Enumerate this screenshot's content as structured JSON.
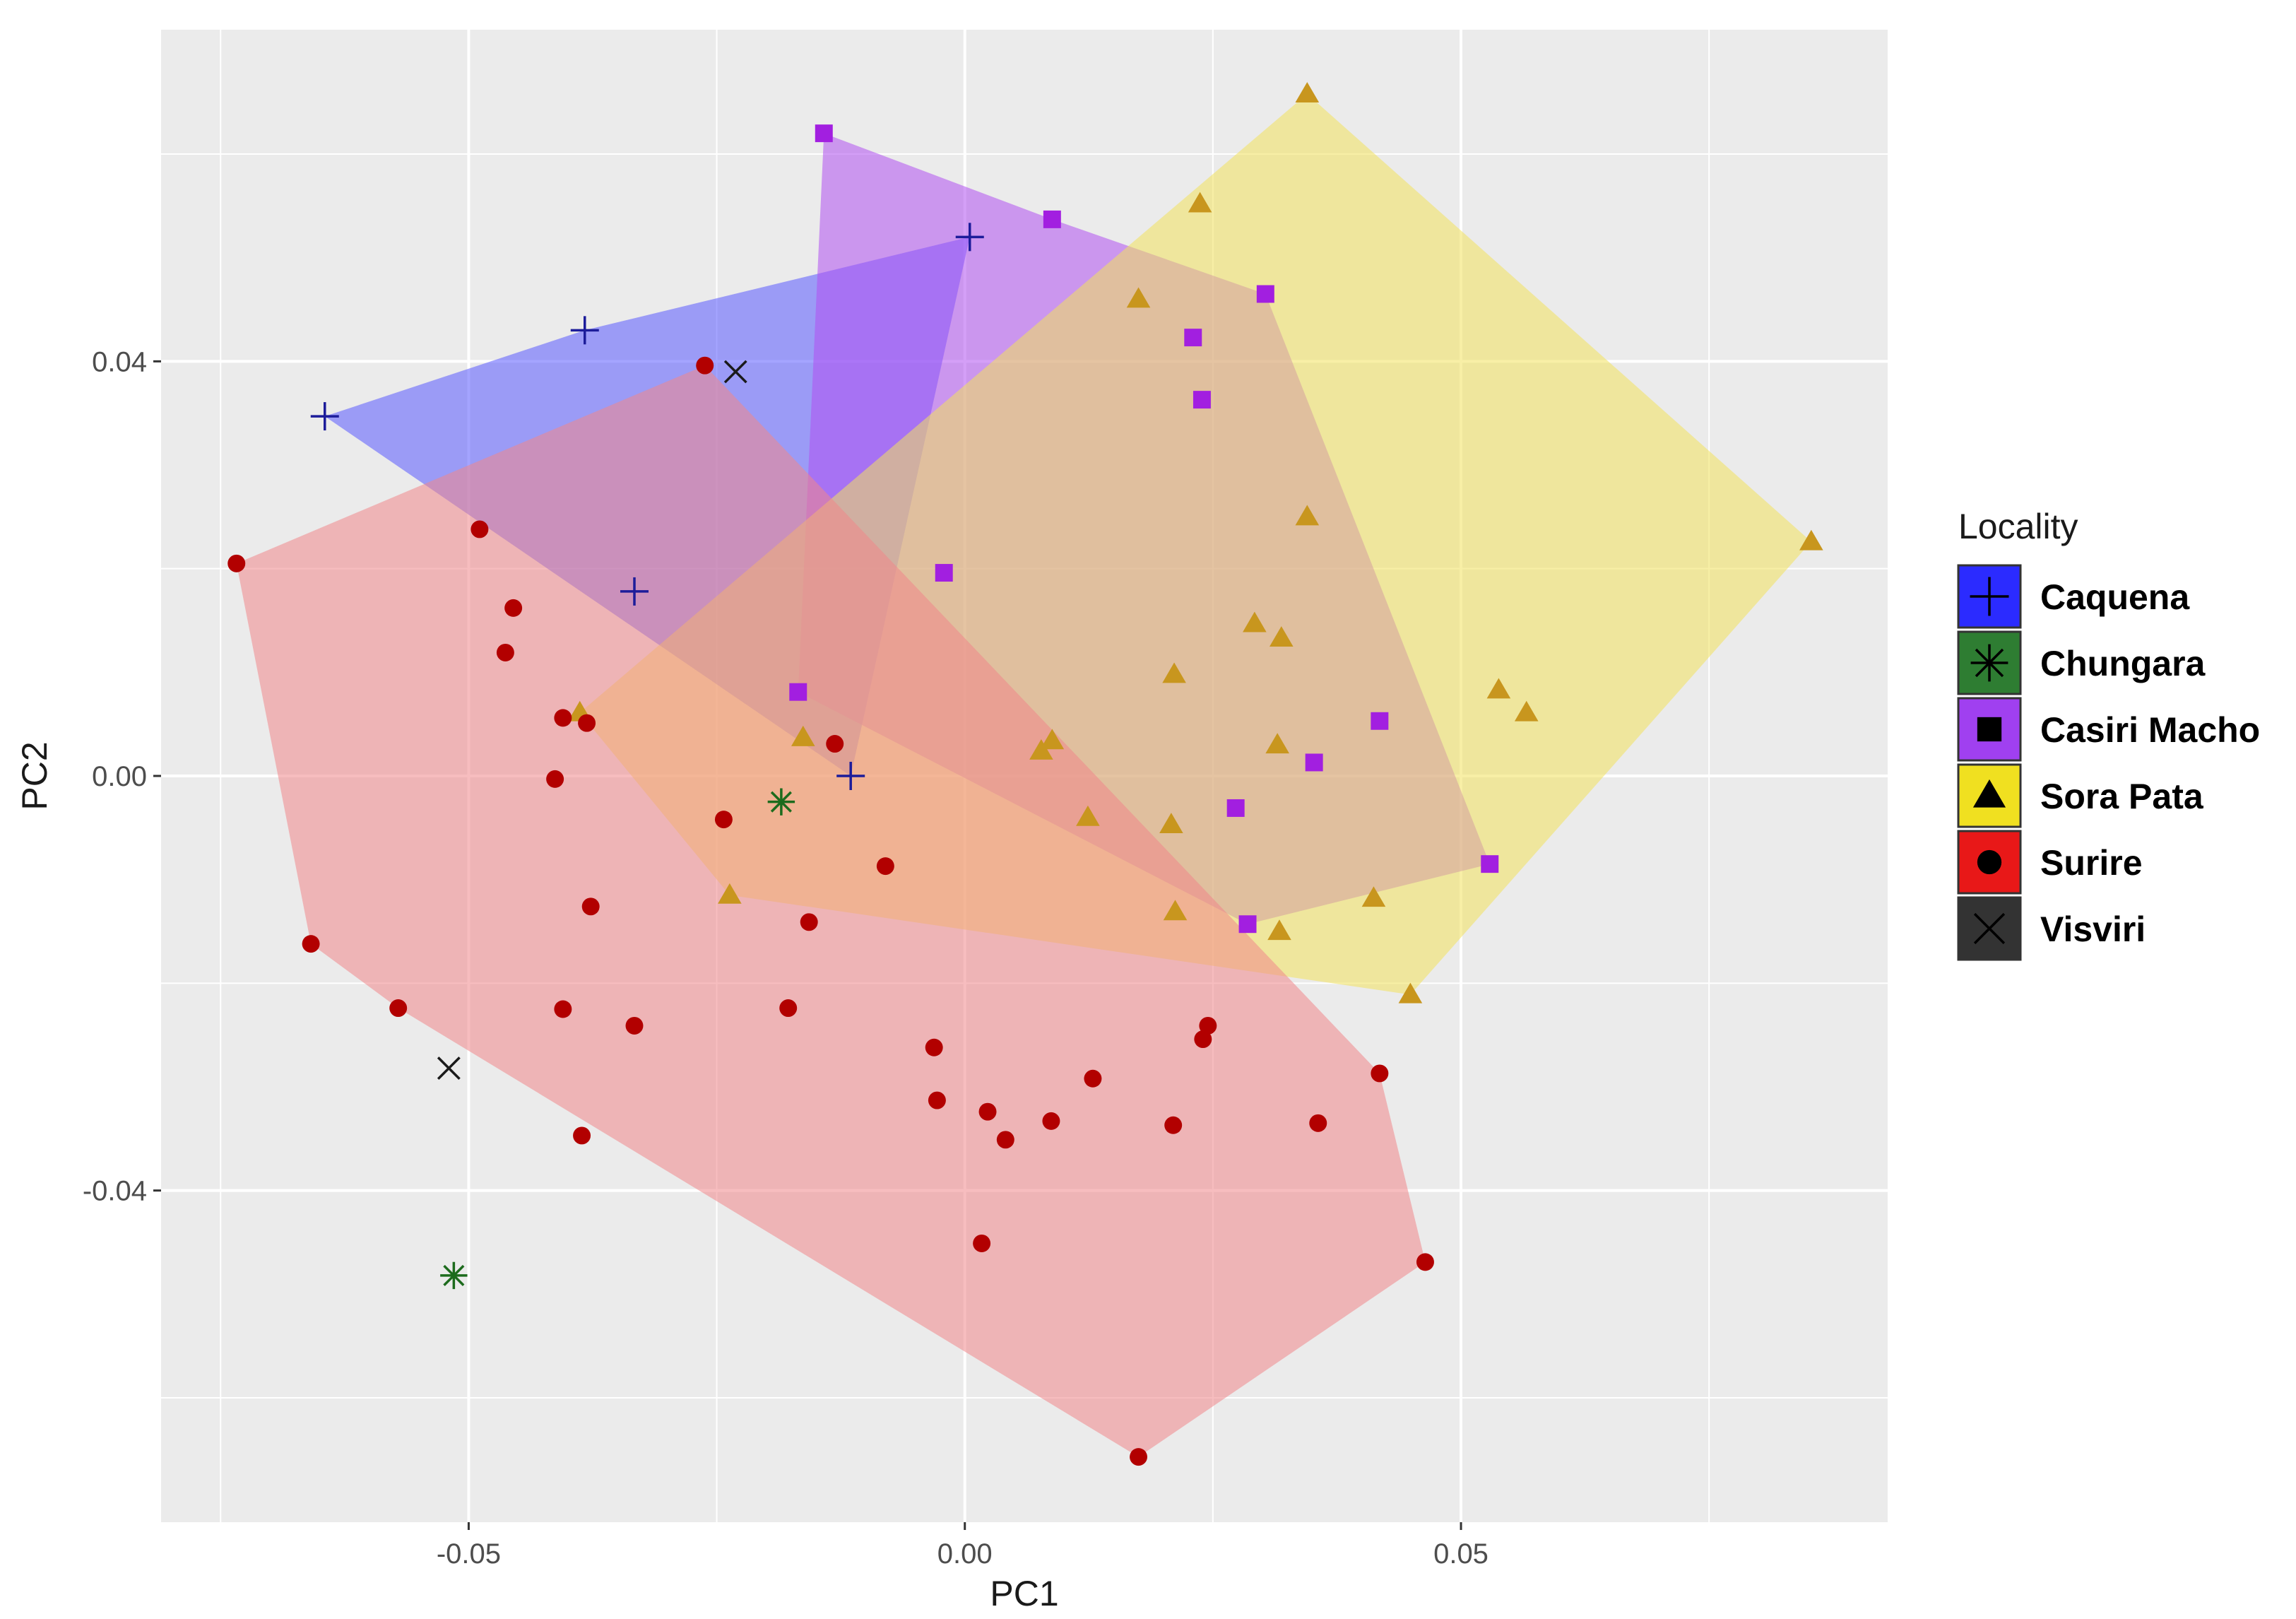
{
  "chart_data": {
    "type": "scatter",
    "title": "",
    "xlabel": "PC1",
    "ylabel": "PC2",
    "xlim": [
      -0.081,
      0.093
    ],
    "ylim": [
      -0.072,
      0.072
    ],
    "x_ticks": [
      -0.05,
      0.0,
      0.05
    ],
    "x_tick_labels": [
      "-0.05",
      "0.00",
      "0.05"
    ],
    "y_ticks": [
      -0.04,
      0.0,
      0.04
    ],
    "y_tick_labels": [
      "-0.04",
      "0.00",
      "0.04"
    ],
    "grid": true,
    "legend_title": "Locality",
    "legend_position": "right",
    "hulls_drawn_for": [
      "Caquena",
      "Casiri Macho",
      "Sora Pata",
      "Surire"
    ],
    "series": [
      {
        "name": "Caquena",
        "marker": "plus",
        "color": "#2b2bff",
        "point_color": "#1c1c9a",
        "hull_color": "#5a5aff",
        "points": [
          [
            -0.0645,
            0.0347
          ],
          [
            -0.0383,
            0.043
          ],
          [
            -0.0333,
            0.0178
          ],
          [
            0.0005,
            0.052
          ],
          [
            -0.0115,
            0.0
          ]
        ],
        "hull": [
          [
            -0.0645,
            0.0347
          ],
          [
            -0.0383,
            0.043
          ],
          [
            0.0005,
            0.052
          ],
          [
            -0.0115,
            0.0
          ]
        ]
      },
      {
        "name": "Chungara",
        "marker": "asterisk",
        "color": "#2e7d32",
        "point_color": "#1d6b1d",
        "points": [
          [
            -0.0185,
            -0.0025
          ],
          [
            -0.0515,
            -0.0482
          ]
        ]
      },
      {
        "name": "Casiri Macho",
        "marker": "square",
        "color": "#a040f0",
        "point_color": "#a21fe0",
        "hull_color": "#b050f0",
        "points": [
          [
            -0.0142,
            0.062
          ],
          [
            0.0088,
            0.0537
          ],
          [
            0.0303,
            0.0465
          ],
          [
            0.023,
            0.0423
          ],
          [
            0.0239,
            0.0363
          ],
          [
            -0.0021,
            0.0196
          ],
          [
            -0.0168,
            0.0081
          ],
          [
            0.0418,
            0.0053
          ],
          [
            0.0352,
            0.0013
          ],
          [
            0.0273,
            -0.0031
          ],
          [
            0.0529,
            -0.0085
          ],
          [
            0.0285,
            -0.0143
          ]
        ],
        "hull": [
          [
            -0.0142,
            0.062
          ],
          [
            0.0088,
            0.0537
          ],
          [
            0.0303,
            0.0465
          ],
          [
            0.0529,
            -0.0085
          ],
          [
            0.0285,
            -0.0143
          ],
          [
            -0.0168,
            0.0081
          ]
        ]
      },
      {
        "name": "Sora Pata",
        "marker": "triangle",
        "color": "#f0e020",
        "point_color": "#c8961e",
        "hull_color": "#f2e25c",
        "points": [
          [
            0.0345,
            0.0658
          ],
          [
            0.0237,
            0.0552
          ],
          [
            0.0175,
            0.046
          ],
          [
            0.0853,
            0.0226
          ],
          [
            0.0345,
            0.025
          ],
          [
            0.0292,
            0.0147
          ],
          [
            0.0319,
            0.0133
          ],
          [
            0.0211,
            0.0098
          ],
          [
            0.0538,
            0.0083
          ],
          [
            0.0566,
            0.0061
          ],
          [
            -0.0388,
            0.0061
          ],
          [
            -0.0163,
            0.0037
          ],
          [
            0.0088,
            0.0034
          ],
          [
            0.0077,
            0.0024
          ],
          [
            0.0315,
            0.003
          ],
          [
            0.0124,
            -0.004
          ],
          [
            0.0208,
            -0.0047
          ],
          [
            -0.0237,
            -0.0115
          ],
          [
            0.0412,
            -0.0118
          ],
          [
            0.0212,
            -0.0131
          ],
          [
            0.0317,
            -0.015
          ],
          [
            0.0449,
            -0.0211
          ]
        ],
        "hull": [
          [
            0.0345,
            0.0658
          ],
          [
            0.0853,
            0.0226
          ],
          [
            0.0449,
            -0.0211
          ],
          [
            -0.0237,
            -0.0115
          ],
          [
            -0.0388,
            0.0061
          ]
        ]
      },
      {
        "name": "Surire",
        "marker": "circle",
        "color": "#e81818",
        "point_color": "#b20000",
        "hull_color": "#f0868a",
        "points": [
          [
            -0.0262,
            0.0396
          ],
          [
            -0.0489,
            0.0238
          ],
          [
            -0.0734,
            0.0205
          ],
          [
            -0.0455,
            0.0162
          ],
          [
            -0.0463,
            0.0119
          ],
          [
            -0.0405,
            0.0056
          ],
          [
            -0.0381,
            0.0051
          ],
          [
            -0.0131,
            0.0031
          ],
          [
            -0.0413,
            -0.0003
          ],
          [
            -0.0243,
            -0.0042
          ],
          [
            -0.008,
            -0.0087
          ],
          [
            -0.0377,
            -0.0126
          ],
          [
            -0.0157,
            -0.0141
          ],
          [
            -0.0659,
            -0.0162
          ],
          [
            -0.0571,
            -0.0224
          ],
          [
            -0.0405,
            -0.0225
          ],
          [
            -0.0178,
            -0.0224
          ],
          [
            -0.0333,
            -0.0241
          ],
          [
            0.0245,
            -0.0241
          ],
          [
            0.024,
            -0.0254
          ],
          [
            -0.0031,
            -0.0262
          ],
          [
            0.0418,
            -0.0287
          ],
          [
            0.0129,
            -0.0292
          ],
          [
            -0.0028,
            -0.0313
          ],
          [
            0.0023,
            -0.0324
          ],
          [
            0.0087,
            -0.0333
          ],
          [
            0.021,
            -0.0337
          ],
          [
            0.0356,
            -0.0335
          ],
          [
            0.0041,
            -0.0351
          ],
          [
            -0.0386,
            -0.0347
          ],
          [
            0.0017,
            -0.0451
          ],
          [
            0.0464,
            -0.0469
          ],
          [
            0.0175,
            -0.0657
          ]
        ],
        "hull": [
          [
            -0.0262,
            0.0396
          ],
          [
            0.0418,
            -0.0287
          ],
          [
            0.0464,
            -0.0469
          ],
          [
            0.0175,
            -0.0657
          ],
          [
            -0.0571,
            -0.0224
          ],
          [
            -0.0659,
            -0.0162
          ],
          [
            -0.0734,
            0.0205
          ]
        ]
      },
      {
        "name": "Visviri",
        "marker": "cross",
        "color": "#333333",
        "point_color": "#1a1a1a",
        "points": [
          [
            -0.0231,
            0.039
          ],
          [
            -0.052,
            -0.0282
          ]
        ]
      }
    ]
  }
}
